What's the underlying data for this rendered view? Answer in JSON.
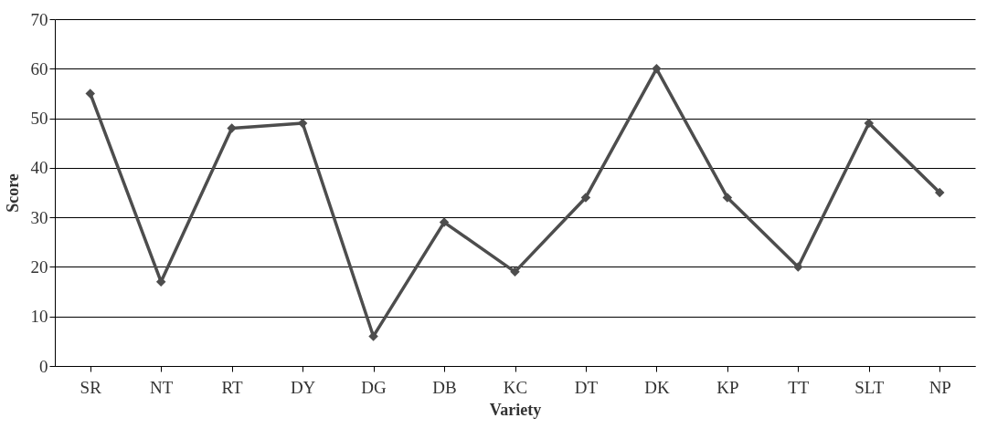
{
  "chart_data": {
    "type": "line",
    "xlabel": "Variety",
    "ylabel": "Score",
    "categories": [
      "SR",
      "NT",
      "RT",
      "DY",
      "DG",
      "DB",
      "KC",
      "DT",
      "DK",
      "KP",
      "TT",
      "SLT",
      "NP"
    ],
    "series": [
      {
        "color": "#4d4d4d",
        "values": [
          55,
          17,
          48,
          49,
          6,
          29,
          19,
          34,
          60,
          34,
          20,
          49,
          35
        ]
      }
    ],
    "ylim": [
      0,
      70
    ],
    "yticks": [
      0,
      10,
      20,
      30,
      40,
      50,
      60,
      70
    ],
    "grid": "y",
    "marker": "diamond",
    "line_style": "solid",
    "legend": false
  }
}
